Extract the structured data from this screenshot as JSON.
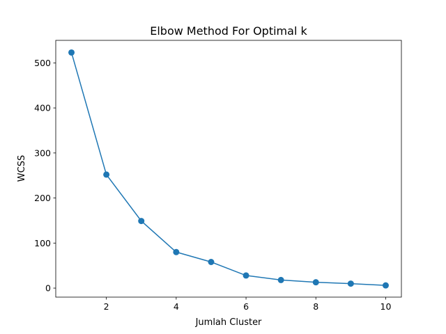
{
  "chart_data": {
    "type": "line",
    "title": "Elbow Method For Optimal k",
    "xlabel": "Jumlah Cluster",
    "ylabel": "WCSS",
    "x": [
      1,
      2,
      3,
      4,
      5,
      6,
      7,
      8,
      9,
      10
    ],
    "series": [
      {
        "values": [
          523,
          252,
          149,
          80,
          58,
          28,
          18,
          13,
          10,
          6
        ],
        "color": "#1f77b4",
        "marker": "circle"
      }
    ],
    "xlim": [
      0.55,
      10.45
    ],
    "ylim": [
      -20,
      550
    ],
    "xticks": [
      2,
      4,
      6,
      8,
      10
    ],
    "yticks": [
      0,
      100,
      200,
      300,
      400,
      500
    ],
    "grid": false,
    "legend": "none"
  }
}
